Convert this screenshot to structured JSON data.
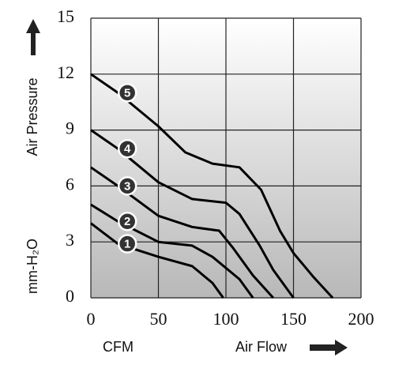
{
  "chart_data": {
    "type": "line",
    "y_label": "Air Pressure",
    "y_unit": "mm-H₂O",
    "x_unit": "CFM",
    "x_label": "Air Flow",
    "xlim": [
      0,
      200
    ],
    "xticks": [
      0,
      50,
      100,
      150,
      200
    ],
    "ylim": [
      0,
      15
    ],
    "yticks": [
      0,
      3,
      6,
      9,
      12,
      15
    ],
    "grid": true,
    "series": [
      {
        "name": "1",
        "color": "#000000",
        "x": [
          0,
          20,
          50,
          75,
          90,
          98
        ],
        "values": [
          4,
          2.9,
          2.2,
          1.7,
          0.8,
          0
        ]
      },
      {
        "name": "2",
        "color": "#000000",
        "x": [
          0,
          20,
          50,
          75,
          90,
          110,
          120
        ],
        "values": [
          5,
          4.1,
          3,
          2.8,
          2.2,
          1,
          0
        ]
      },
      {
        "name": "3",
        "color": "#000000",
        "x": [
          0,
          20,
          50,
          75,
          95,
          105,
          120,
          135
        ],
        "values": [
          7,
          6,
          4.4,
          3.8,
          3.6,
          2.7,
          1.2,
          0
        ]
      },
      {
        "name": "4",
        "color": "#000000",
        "x": [
          0,
          20,
          50,
          75,
          100,
          110,
          125,
          135,
          150
        ],
        "values": [
          9,
          8,
          6.2,
          5.3,
          5.1,
          4.5,
          2.8,
          1.5,
          0
        ]
      },
      {
        "name": "5",
        "color": "#000000",
        "x": [
          0,
          20,
          50,
          70,
          90,
          110,
          126,
          140,
          150,
          165,
          179
        ],
        "values": [
          12,
          11,
          9.2,
          7.8,
          7.2,
          7,
          5.8,
          3.6,
          2.4,
          1.1,
          0
        ]
      }
    ]
  }
}
